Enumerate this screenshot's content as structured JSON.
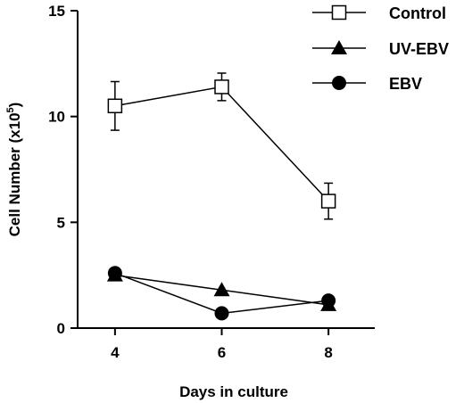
{
  "chart_data": {
    "type": "line",
    "xlabel": "Days in culture",
    "ylabel": "Cell Number (x10",
    "ylabel_sup": "5",
    "ylabel_close": ")",
    "x": [
      4,
      6,
      8
    ],
    "x_ticks": [
      "4",
      "6",
      "8"
    ],
    "xlim": [
      3.3,
      8.7
    ],
    "y_ticks": [
      "0",
      "5",
      "10",
      "15"
    ],
    "ylim": [
      0,
      15
    ],
    "legend_position": "top-right",
    "grid": false,
    "series": [
      {
        "name": "Control",
        "marker": "open-square",
        "values": [
          10.5,
          11.4,
          6.0
        ],
        "errors": [
          1.15,
          0.65,
          0.85
        ]
      },
      {
        "name": "UV-EBV",
        "marker": "filled-triangle",
        "values": [
          2.5,
          1.8,
          1.1
        ],
        "errors": [
          0,
          0,
          0
        ]
      },
      {
        "name": "EBV",
        "marker": "filled-circle",
        "values": [
          2.6,
          0.7,
          1.3
        ],
        "errors": [
          0,
          0,
          0
        ]
      }
    ]
  }
}
